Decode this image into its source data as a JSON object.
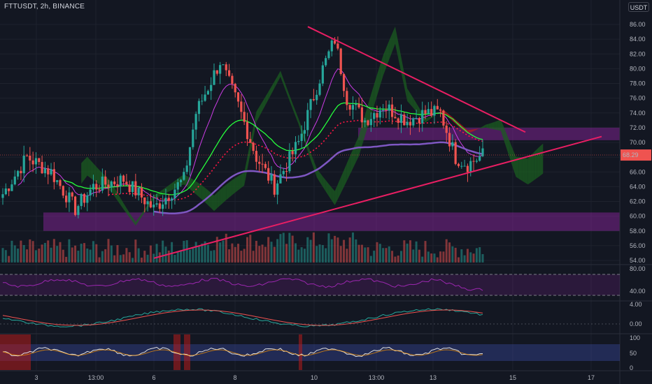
{
  "header": {
    "title": "FTTUSDT, 2h, BINANCE",
    "currency_badge": "USDT"
  },
  "colors": {
    "background": "#131722",
    "grid": "#1e222d",
    "up": "#26a69a",
    "down": "#ef5350",
    "trendline": "#e91e63",
    "zone": "#9c27b0",
    "ema_green": "#26ff3c",
    "ema_purple": "#7e57c2",
    "cloud_green": "#1b5e20",
    "cloud_red": "#b71c1c",
    "rsi": "#9c27b0",
    "macd": "#26a69a",
    "signal": "#ef5350"
  },
  "chart_data": {
    "type": "candlestick",
    "x_tick_labels": [
      "3",
      "13:00",
      "6",
      "8",
      "10",
      "13:00",
      "13",
      "15",
      "17"
    ],
    "price_axis": {
      "ylim": [
        54,
        87
      ],
      "ticks": [
        "86.00",
        "84.00",
        "82.00",
        "80.00",
        "78.00",
        "76.00",
        "74.00",
        "72.00",
        "70.00",
        "68.00",
        "66.00",
        "64.00",
        "62.00",
        "60.00",
        "58.00",
        "56.00",
        "54.00"
      ]
    },
    "last_price": "68.29",
    "zones": [
      {
        "name": "resistance-zone",
        "from": 70.3,
        "to": 72.0
      },
      {
        "name": "support-zone",
        "from": 58.0,
        "to": 60.5
      }
    ],
    "trendlines": [
      {
        "name": "descending-resistance",
        "from": [
          0,
          85.7
        ],
        "to": [
          1,
          71.4
        ]
      },
      {
        "name": "ascending-support",
        "from": [
          0,
          54.3
        ],
        "to": [
          1,
          70.8
        ]
      }
    ],
    "rsi_pane": {
      "ticks": [
        "80.00",
        "40.00"
      ]
    },
    "macd_pane": {
      "ticks": [
        "4.00",
        "0.00"
      ]
    },
    "stoch_pane": {
      "ticks": [
        "100",
        "50",
        "0"
      ]
    }
  }
}
